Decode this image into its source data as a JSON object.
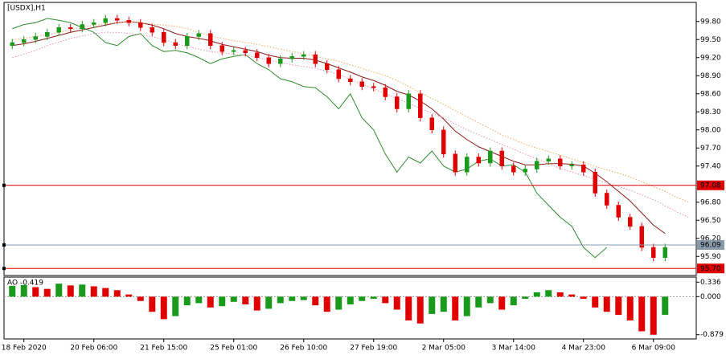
{
  "chart_data": [
    {
      "type": "candlestick",
      "title": "[USDX],H1",
      "categories": [
        null,
        "18 Feb 2020",
        null,
        null,
        null,
        null,
        null,
        "20 Feb 06:00",
        null,
        null,
        null,
        null,
        null,
        "21 Feb 15:00",
        null,
        null,
        null,
        null,
        null,
        "25 Feb 01:00",
        null,
        null,
        null,
        null,
        null,
        "26 Feb 10:00",
        null,
        null,
        null,
        null,
        null,
        "27 Feb 19:00",
        null,
        null,
        null,
        null,
        null,
        "2 Mar 05:00",
        null,
        null,
        null,
        null,
        null,
        "3 Mar 14:00",
        null,
        null,
        null,
        null,
        null,
        "4 Mar 23:00",
        null,
        null,
        null,
        null,
        null,
        "6 Mar 09:00",
        null,
        null,
        null
      ],
      "open": [
        99.4,
        99.45,
        99.5,
        99.55,
        99.62,
        99.7,
        99.68,
        99.75,
        99.78,
        99.85,
        99.82,
        99.78,
        99.7,
        99.62,
        99.45,
        99.4,
        99.55,
        99.6,
        99.4,
        99.3,
        99.32,
        99.28,
        99.2,
        99.1,
        99.18,
        99.22,
        99.25,
        99.1,
        99.0,
        98.85,
        98.8,
        98.72,
        98.7,
        98.55,
        98.35,
        98.6,
        98.2,
        98.0,
        97.6,
        97.3,
        97.55,
        97.45,
        97.65,
        97.4,
        97.3,
        97.35,
        97.48,
        97.52,
        97.4,
        97.42,
        97.3,
        96.95,
        96.75,
        96.55,
        96.4,
        96.05,
        95.88,
        null,
        null
      ],
      "high": [
        99.51,
        99.56,
        99.61,
        99.68,
        99.76,
        99.76,
        99.81,
        99.84,
        99.91,
        99.91,
        99.88,
        99.84,
        99.76,
        99.68,
        99.51,
        99.61,
        99.66,
        99.66,
        99.46,
        99.38,
        99.38,
        99.34,
        99.26,
        99.24,
        99.28,
        99.31,
        99.31,
        99.16,
        99.06,
        98.91,
        98.86,
        98.78,
        98.76,
        98.61,
        98.66,
        98.66,
        98.26,
        98.06,
        97.66,
        97.61,
        97.61,
        97.71,
        97.71,
        97.46,
        97.41,
        97.54,
        97.58,
        97.58,
        97.48,
        97.48,
        97.36,
        97.01,
        96.81,
        96.61,
        96.46,
        96.11,
        96.11,
        null,
        null
      ],
      "low": [
        99.34,
        99.39,
        99.44,
        99.49,
        99.56,
        99.62,
        99.62,
        99.69,
        99.72,
        99.76,
        99.72,
        99.64,
        99.56,
        99.39,
        99.34,
        99.34,
        99.49,
        99.34,
        99.24,
        99.24,
        99.22,
        99.14,
        99.04,
        99.04,
        99.12,
        99.16,
        99.04,
        98.94,
        98.79,
        98.74,
        98.66,
        98.64,
        98.49,
        98.29,
        98.29,
        98.14,
        97.94,
        97.54,
        97.24,
        97.24,
        97.39,
        97.39,
        97.34,
        97.24,
        97.24,
        97.29,
        97.42,
        97.34,
        97.34,
        97.24,
        96.89,
        96.69,
        96.49,
        96.34,
        95.99,
        95.82,
        95.82,
        null,
        null
      ],
      "close": [
        99.45,
        99.5,
        99.55,
        99.62,
        99.7,
        99.68,
        99.75,
        99.78,
        99.85,
        99.82,
        99.78,
        99.7,
        99.62,
        99.45,
        99.4,
        99.55,
        99.6,
        99.4,
        99.3,
        99.32,
        99.28,
        99.2,
        99.1,
        99.18,
        99.22,
        99.25,
        99.1,
        99.0,
        98.85,
        98.8,
        98.72,
        98.7,
        98.55,
        98.35,
        98.6,
        98.2,
        98.0,
        97.6,
        97.3,
        97.55,
        97.45,
        97.65,
        97.4,
        97.3,
        97.35,
        97.48,
        97.52,
        97.4,
        97.42,
        97.3,
        96.95,
        96.75,
        96.55,
        96.4,
        96.05,
        95.88,
        96.05,
        null,
        null
      ],
      "up_color": "#1a9a1a",
      "down_color": "#e00000",
      "lines": [
        {
          "color": "#8b1a1a",
          "dash": false,
          "values": [
            99.4,
            99.43,
            99.47,
            99.52,
            99.57,
            99.62,
            99.66,
            99.7,
            99.74,
            99.78,
            99.8,
            99.78,
            99.74,
            99.68,
            99.6,
            99.55,
            99.52,
            99.48,
            99.42,
            99.38,
            99.34,
            99.3,
            99.24,
            99.2,
            99.19,
            99.19,
            99.16,
            99.1,
            99.03,
            98.96,
            98.88,
            98.82,
            98.74,
            98.64,
            98.58,
            98.48,
            98.35,
            98.18,
            97.98,
            97.84,
            97.72,
            97.64,
            97.56,
            97.48,
            97.42,
            97.42,
            97.44,
            97.44,
            97.43,
            97.4,
            97.28,
            97.14,
            96.98,
            96.82,
            96.62,
            96.42,
            96.28,
            null,
            null
          ]
        },
        {
          "color": "#2e8b2e",
          "dash": false,
          "values": [
            99.68,
            99.75,
            99.78,
            99.85,
            99.82,
            99.78,
            99.7,
            99.62,
            99.45,
            99.4,
            99.55,
            99.6,
            99.4,
            99.3,
            99.32,
            99.28,
            99.2,
            99.1,
            99.18,
            99.22,
            99.25,
            99.1,
            99.0,
            98.85,
            98.8,
            98.72,
            98.7,
            98.55,
            98.35,
            98.6,
            98.2,
            98.0,
            97.6,
            97.3,
            97.55,
            97.45,
            97.65,
            97.4,
            97.3,
            97.35,
            97.48,
            97.52,
            97.4,
            97.42,
            97.3,
            96.95,
            96.75,
            96.55,
            96.4,
            96.05,
            95.88,
            96.05,
            null,
            null,
            null,
            null,
            null,
            null,
            null
          ]
        },
        {
          "color": "#f0a860",
          "dash": true,
          "values": [
            99.5,
            99.52,
            99.55,
            99.58,
            99.62,
            99.66,
            99.7,
            99.74,
            99.76,
            99.78,
            99.8,
            99.78,
            99.76,
            99.74,
            99.72,
            99.68,
            99.62,
            99.56,
            99.52,
            99.48,
            99.45,
            99.42,
            99.38,
            99.34,
            99.3,
            99.26,
            99.22,
            99.18,
            99.14,
            99.08,
            99.02,
            98.96,
            98.9,
            98.82,
            98.72,
            98.62,
            98.52,
            98.42,
            98.32,
            98.22,
            98.12,
            98.02,
            97.92,
            97.84,
            97.76,
            97.7,
            97.64,
            97.58,
            97.52,
            97.46,
            97.4,
            97.34,
            97.28,
            97.22,
            97.14,
            97.06,
            96.98,
            96.88,
            96.8
          ]
        },
        {
          "color": "#e890b8",
          "dash": true,
          "values": [
            99.2,
            99.26,
            99.32,
            99.4,
            99.46,
            99.52,
            99.56,
            99.6,
            99.62,
            99.62,
            99.6,
            99.58,
            99.55,
            99.5,
            99.44,
            99.38,
            99.34,
            99.3,
            99.28,
            99.26,
            99.24,
            99.2,
            99.16,
            99.12,
            99.08,
            99.05,
            99.02,
            98.98,
            98.92,
            98.84,
            98.76,
            98.68,
            98.6,
            98.52,
            98.44,
            98.36,
            98.28,
            98.2,
            98.1,
            98.0,
            97.92,
            97.84,
            97.76,
            97.68,
            97.6,
            97.52,
            97.44,
            97.36,
            97.3,
            97.24,
            97.18,
            97.12,
            97.06,
            97.0,
            96.92,
            96.84,
            96.74,
            96.64,
            96.55
          ]
        }
      ],
      "hlines": [
        {
          "value": 97.08,
          "color": "#e00000"
        },
        {
          "value": 96.09,
          "color": "#8899aa"
        },
        {
          "value": 95.7,
          "label": "95.70",
          "color": "#e00000"
        }
      ],
      "ylim": [
        95.61,
        100.09
      ],
      "yticks": [
        {
          "value": 99.8,
          "label": "99.80"
        },
        {
          "value": 99.5,
          "label": "99.50"
        },
        {
          "value": 99.2,
          "label": "99.20"
        },
        {
          "value": 98.9,
          "label": "98.90"
        },
        {
          "value": 98.6,
          "label": "98.60"
        },
        {
          "value": 98.3,
          "label": "98.30"
        },
        {
          "value": 98,
          "label": "98.00"
        },
        {
          "value": 97.7,
          "label": "97.70"
        },
        {
          "value": 97.4,
          "label": "97.40"
        },
        {
          "value": 96.8,
          "label": "96.80"
        },
        {
          "value": 96.5,
          "label": "96.50"
        },
        {
          "value": 96.2,
          "label": "96.20"
        },
        {
          "value": 95.9,
          "label": "95.90"
        }
      ]
    },
    {
      "type": "bar",
      "title": "AO -0.419",
      "values": [
        0.25,
        0.27,
        0.22,
        0.18,
        0.3,
        0.26,
        0.28,
        0.24,
        0.2,
        0.15,
        0.05,
        -0.1,
        -0.35,
        -0.52,
        -0.45,
        -0.2,
        -0.15,
        -0.25,
        -0.22,
        -0.12,
        -0.18,
        -0.32,
        -0.28,
        -0.15,
        -0.1,
        -0.08,
        -0.2,
        -0.35,
        -0.3,
        -0.18,
        -0.1,
        -0.05,
        -0.15,
        -0.3,
        -0.55,
        -0.62,
        -0.4,
        -0.35,
        -0.55,
        -0.45,
        -0.25,
        -0.15,
        -0.3,
        -0.2,
        -0.05,
        0.1,
        0.15,
        0.1,
        0.05,
        -0.05,
        -0.25,
        -0.35,
        -0.42,
        -0.55,
        -0.8,
        -0.88,
        -0.419,
        null,
        null
      ],
      "up_color": "#1a9a1a",
      "down_color": "#e00000",
      "ylim": [
        -0.94,
        0.415
      ],
      "yticks": [
        0.336,
        {
          "value": 0,
          "label": "0.000"
        },
        -0.879
      ]
    }
  ]
}
